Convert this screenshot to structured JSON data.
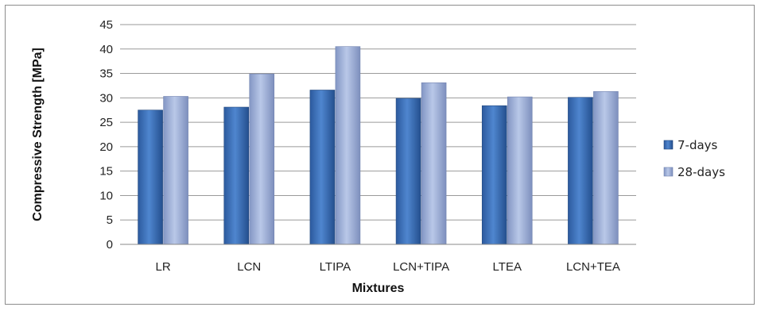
{
  "chart_data": {
    "type": "bar",
    "title": "",
    "xlabel": "Mixtures",
    "ylabel": "Compressive Strength [MPa]",
    "ylim": [
      0,
      45
    ],
    "yticks": [
      "0",
      "5",
      "10",
      "15",
      "20",
      "25",
      "30",
      "35",
      "40",
      "45"
    ],
    "categories": [
      "LR",
      "LCN",
      "LTIPA",
      "LCN+TIPA",
      "LTEA",
      "LCN+TEA"
    ],
    "series": [
      {
        "name": "7-days",
        "values": [
          27.5,
          28.1,
          31.6,
          29.9,
          28.4,
          30.1
        ],
        "color": "#3a6fb8"
      },
      {
        "name": "28-days",
        "values": [
          30.3,
          34.9,
          40.5,
          33.1,
          30.2,
          31.3
        ],
        "color": "#9aaed6"
      }
    ],
    "grid": true,
    "legend_position": "right"
  }
}
